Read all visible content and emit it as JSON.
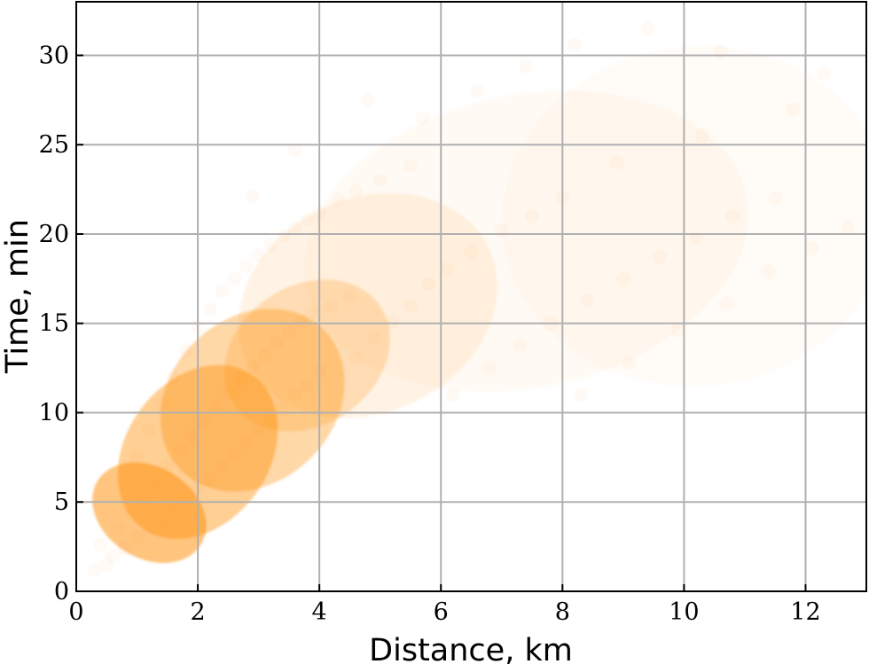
{
  "chart_data": {
    "type": "scatter",
    "title": "",
    "xlabel": "Distance, km",
    "ylabel": "Time, min",
    "xlim": [
      0,
      13
    ],
    "ylim": [
      0,
      33
    ],
    "xticks": [
      0,
      2,
      4,
      6,
      8,
      10,
      12
    ],
    "yticks": [
      0,
      5,
      10,
      15,
      20,
      25,
      30
    ],
    "xtick_labels": [
      "0",
      "2",
      "4",
      "6",
      "8",
      "10",
      "12"
    ],
    "ytick_labels": [
      "0",
      "5",
      "10",
      "15",
      "20",
      "25",
      "30"
    ],
    "grid": true,
    "legend": "none",
    "colors": {
      "points": "#ff8c00",
      "grid": "#b0b0b0",
      "axes": "#000000"
    },
    "series": [
      {
        "marker": "circle",
        "alpha": 0.04,
        "points": [
          [
            0.3,
            1.2
          ],
          [
            0.5,
            1.5
          ],
          [
            0.6,
            2.0
          ],
          [
            0.8,
            2.4
          ],
          [
            1.0,
            3.0
          ],
          [
            1.2,
            3.4
          ],
          [
            1.4,
            3.9
          ],
          [
            1.6,
            4.6
          ],
          [
            1.8,
            5.2
          ],
          [
            2.0,
            5.8
          ],
          [
            2.2,
            6.3
          ],
          [
            2.4,
            7.0
          ],
          [
            2.6,
            7.6
          ],
          [
            2.8,
            8.3
          ],
          [
            3.0,
            9.0
          ],
          [
            3.2,
            9.6
          ],
          [
            3.4,
            10.2
          ],
          [
            3.6,
            11.0
          ],
          [
            3.8,
            11.5
          ],
          [
            4.0,
            12.3
          ],
          [
            0.4,
            2.6
          ],
          [
            0.7,
            3.5
          ],
          [
            0.9,
            4.3
          ],
          [
            1.1,
            5.0
          ],
          [
            1.3,
            6.1
          ],
          [
            1.5,
            7.0
          ],
          [
            1.7,
            7.9
          ],
          [
            1.9,
            8.7
          ],
          [
            2.1,
            9.5
          ],
          [
            2.3,
            10.4
          ],
          [
            2.5,
            11.2
          ],
          [
            2.7,
            11.9
          ],
          [
            2.9,
            12.6
          ],
          [
            3.1,
            13.2
          ],
          [
            3.3,
            13.9
          ],
          [
            3.5,
            14.5
          ],
          [
            3.7,
            15.1
          ],
          [
            3.9,
            15.6
          ],
          [
            4.2,
            16.0
          ],
          [
            4.5,
            16.5
          ],
          [
            1.0,
            7.5
          ],
          [
            1.2,
            9.0
          ],
          [
            1.4,
            10.5
          ],
          [
            1.6,
            12.0
          ],
          [
            1.8,
            13.5
          ],
          [
            2.0,
            14.8
          ],
          [
            2.2,
            15.8
          ],
          [
            2.4,
            16.8
          ],
          [
            2.6,
            17.5
          ],
          [
            2.8,
            18.2
          ],
          [
            3.0,
            18.8
          ],
          [
            3.2,
            19.4
          ],
          [
            3.4,
            19.9
          ],
          [
            3.6,
            20.3
          ],
          [
            3.8,
            20.8
          ],
          [
            4.0,
            21.2
          ],
          [
            4.3,
            21.9
          ],
          [
            4.6,
            22.4
          ],
          [
            5.0,
            23.0
          ],
          [
            5.5,
            23.8
          ],
          [
            4.6,
            13.0
          ],
          [
            4.9,
            14.2
          ],
          [
            5.2,
            15.1
          ],
          [
            5.5,
            16.0
          ],
          [
            5.8,
            17.2
          ],
          [
            6.1,
            18.0
          ],
          [
            6.5,
            19.0
          ],
          [
            7.0,
            20.2
          ],
          [
            7.5,
            21.0
          ],
          [
            8.0,
            22.0
          ],
          [
            6.2,
            11.0
          ],
          [
            6.8,
            12.5
          ],
          [
            7.3,
            13.8
          ],
          [
            7.8,
            15.0
          ],
          [
            8.4,
            16.3
          ],
          [
            9.0,
            17.5
          ],
          [
            9.6,
            18.7
          ],
          [
            10.2,
            19.8
          ],
          [
            10.8,
            21.0
          ],
          [
            11.5,
            22.0
          ],
          [
            8.3,
            11.0
          ],
          [
            9.1,
            12.8
          ],
          [
            9.9,
            14.6
          ],
          [
            10.7,
            16.1
          ],
          [
            11.4,
            17.9
          ],
          [
            12.1,
            19.2
          ],
          [
            12.7,
            20.4
          ],
          [
            8.9,
            24.0
          ],
          [
            10.3,
            25.5
          ],
          [
            11.8,
            27.0
          ],
          [
            5.7,
            26.5
          ],
          [
            6.6,
            28.0
          ],
          [
            7.4,
            29.4
          ],
          [
            8.2,
            30.6
          ],
          [
            9.4,
            31.5
          ],
          [
            10.6,
            30.2
          ],
          [
            12.3,
            29.0
          ],
          [
            4.8,
            27.5
          ],
          [
            3.6,
            24.7
          ],
          [
            2.9,
            22.1
          ]
        ]
      }
    ]
  }
}
